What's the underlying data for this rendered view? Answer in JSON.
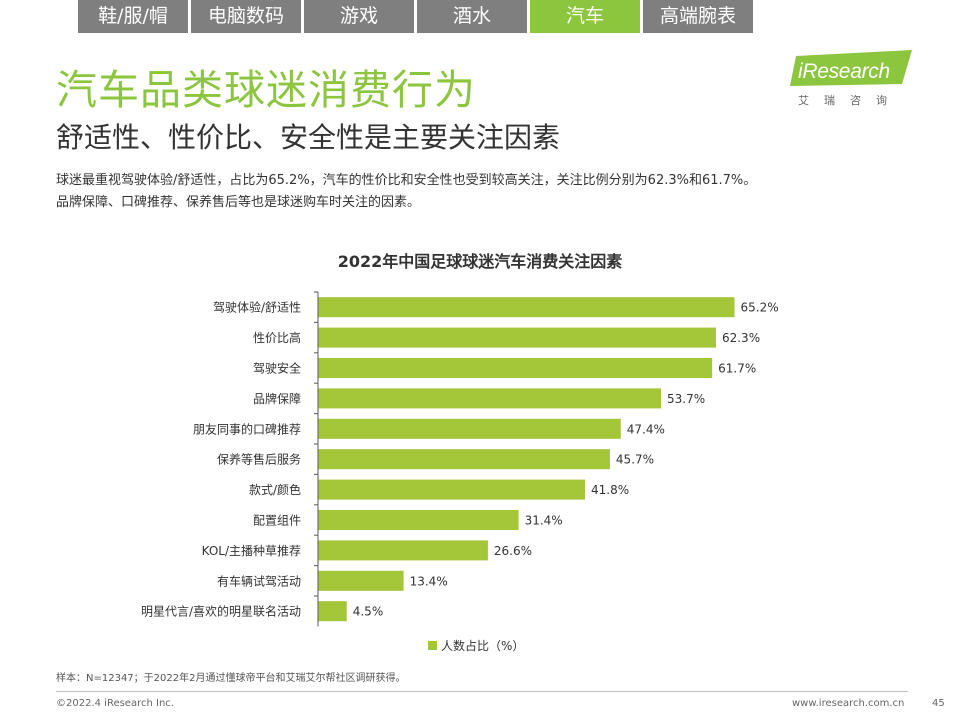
{
  "tabs": [
    {
      "label": "鞋/服/帽"
    },
    {
      "label": "电脑数码"
    },
    {
      "label": "游戏"
    },
    {
      "label": "酒水"
    },
    {
      "label": "汽车"
    },
    {
      "label": "高端腕表"
    }
  ],
  "active_tab_index": 4,
  "logo": {
    "text": "iResearch",
    "cn": "艾瑞咨询"
  },
  "title": "汽车品类球迷消费行为",
  "subtitle": "舒适性、性价比、安全性是主要关注因素",
  "description": [
    "球迷最重视驾驶体验/舒适性，占比为65.2%，汽车的性价比和安全性也受到较高关注，关注比例分别为62.3%和61.7%。",
    "品牌保障、口碑推荐、保养售后等也是球迷购车时关注的因素。"
  ],
  "colors": {
    "accent": "#8cc63f",
    "bar": "#a4c639",
    "tab_inactive": "#7f7f7f"
  },
  "chart_data": {
    "type": "bar",
    "orientation": "horizontal",
    "title": "2022年中国足球球迷汽车消费关注因素",
    "categories": [
      "驾驶体验/舒适性",
      "性价比高",
      "驾驶安全",
      "品牌保障",
      "朋友同事的口碑推荐",
      "保养等售后服务",
      "款式/颜色",
      "配置组件",
      "KOL/主播种草推荐",
      "有车辆试驾活动",
      "明星代言/喜欢的明星联名活动"
    ],
    "series": [
      {
        "name": "人数占比（%）",
        "values": [
          65.2,
          62.3,
          61.7,
          53.7,
          47.4,
          45.7,
          41.8,
          31.4,
          26.6,
          13.4,
          4.5
        ]
      }
    ],
    "value_labels": [
      "65.2%",
      "62.3%",
      "61.7%",
      "53.7%",
      "47.4%",
      "45.7%",
      "41.8%",
      "31.4%",
      "26.6%",
      "13.4%",
      "4.5%"
    ],
    "xlim": [
      0,
      70
    ],
    "grid": false,
    "legend": "bottom-center"
  },
  "note": "样本：N=12347；于2022年2月通过懂球帝平台和艾瑞艾尔帮社区调研获得。",
  "copyright": "©2022.4 iResearch Inc.",
  "site": "www.iresearch.com.cn",
  "page_number": "45"
}
